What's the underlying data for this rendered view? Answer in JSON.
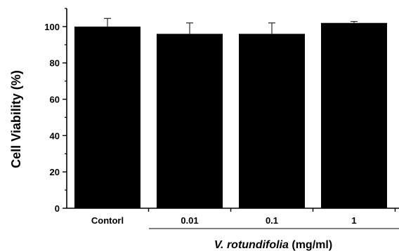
{
  "chart_data": {
    "type": "bar",
    "categories": [
      "Contorl",
      "0.01",
      "0.1",
      "1"
    ],
    "values": [
      100,
      96,
      96,
      102
    ],
    "errors": [
      4.5,
      6,
      6,
      0.8
    ],
    "ylabel": "Cell Viability (%)",
    "xlabel": "",
    "group_label": {
      "italic_part": "V. rotundifolia",
      "unit_part": " (mg/ml)"
    },
    "ylim": [
      0,
      110
    ],
    "yticks": [
      0,
      20,
      40,
      60,
      80,
      100
    ],
    "bar_color": "#000000",
    "grid": false,
    "legend": "none"
  }
}
